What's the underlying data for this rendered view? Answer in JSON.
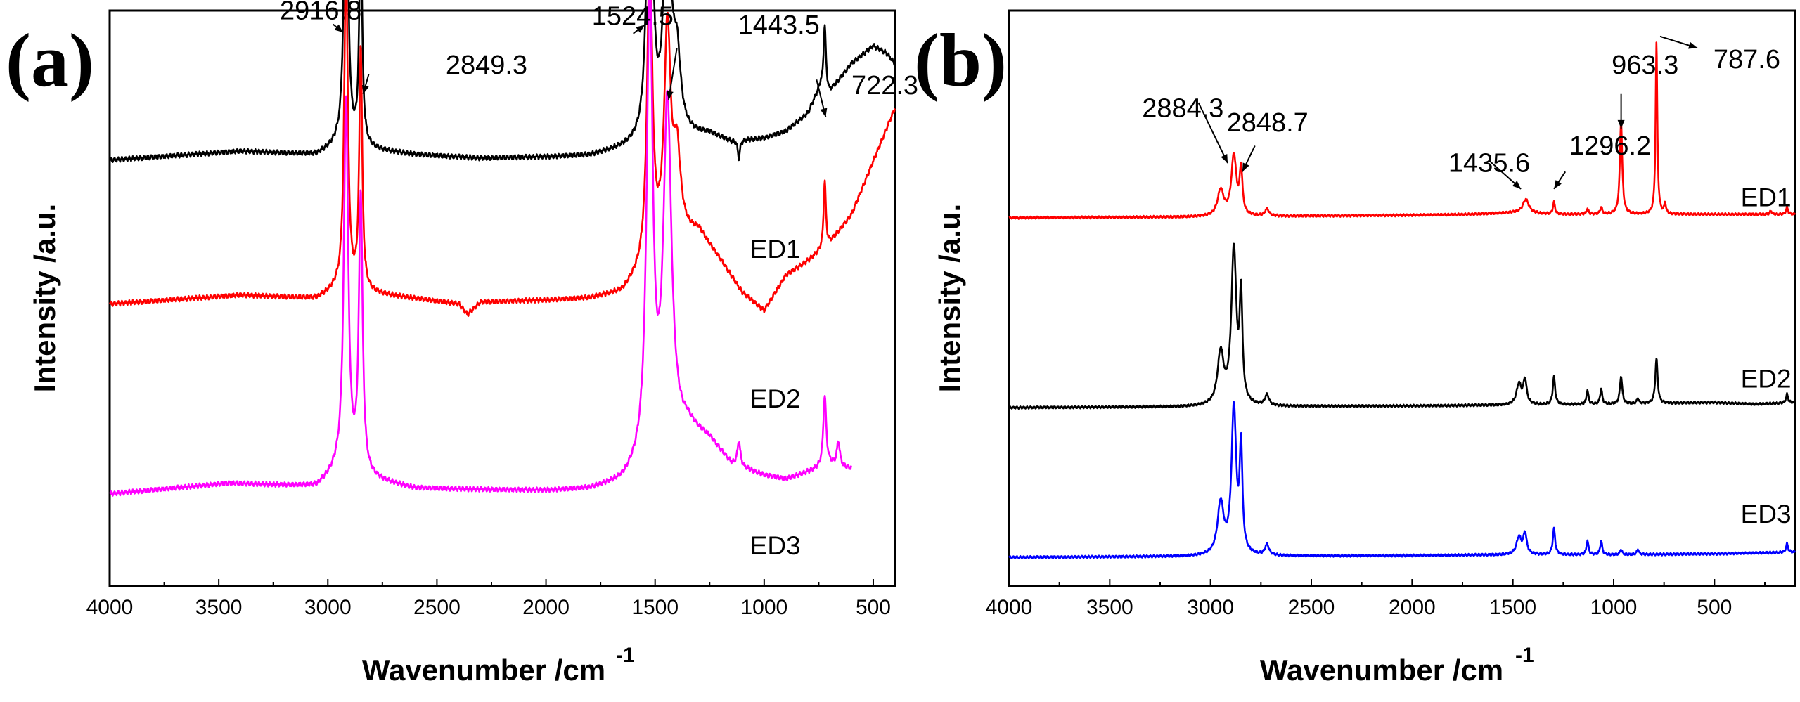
{
  "chart_data": [
    {
      "type": "line",
      "panel_label": "(a)",
      "xlabel": "Wavenumber /cm",
      "xlabel_superscript": "-1",
      "ylabel": "Intensity /a.u.",
      "xlim": [
        4000,
        400
      ],
      "x_ticks": [
        4000,
        3500,
        3000,
        2500,
        2000,
        1500,
        1000,
        500
      ],
      "y_ticks": [],
      "grid": false,
      "series": [
        {
          "name": "ED1",
          "color": "#000000",
          "offset": 0.74,
          "scale": 0.62,
          "xmin": 400,
          "baseline": [
            [
              4000,
              0
            ],
            [
              3400,
              0.025
            ],
            [
              3050,
              0.015
            ],
            [
              2960,
              0.04
            ],
            [
              2600,
              0.015
            ],
            [
              2300,
              0.005
            ],
            [
              2000,
              0.008
            ],
            [
              1800,
              0.012
            ],
            [
              1650,
              0.03
            ],
            [
              1400,
              0.06
            ],
            [
              1250,
              0.07
            ],
            [
              1150,
              0.05
            ],
            [
              1000,
              0.06
            ],
            [
              900,
              0.08
            ],
            [
              800,
              0.13
            ],
            [
              740,
              0.21
            ],
            [
              700,
              0.19
            ],
            [
              600,
              0.27
            ],
            [
              500,
              0.32
            ],
            [
              440,
              0.3
            ],
            [
              400,
              0.27
            ]
          ],
          "peaks": [
            [
              2916.8,
              1.0,
              10
            ],
            [
              2849.3,
              0.62,
              8
            ],
            [
              1524.5,
              1.04,
              14
            ],
            [
              1443.5,
              0.72,
              18
            ],
            [
              1400,
              0.2,
              20
            ],
            [
              1116,
              -0.05,
              6
            ],
            [
              722.3,
              0.18,
              6
            ]
          ]
        },
        {
          "name": "ED2",
          "color": "#ff0000",
          "offset": 0.49,
          "scale": 0.62,
          "xmin": 400,
          "baseline": [
            [
              4000,
              0
            ],
            [
              3400,
              0.025
            ],
            [
              3050,
              0.015
            ],
            [
              2960,
              0.04
            ],
            [
              2600,
              0.015
            ],
            [
              2400,
              0.0
            ],
            [
              2360,
              -0.03
            ],
            [
              2300,
              0.005
            ],
            [
              2000,
              0.01
            ],
            [
              1800,
              0.015
            ],
            [
              1650,
              0.03
            ],
            [
              1400,
              0.18
            ],
            [
              1300,
              0.2
            ],
            [
              1200,
              0.12
            ],
            [
              1100,
              0.03
            ],
            [
              1000,
              -0.02
            ],
            [
              900,
              0.08
            ],
            [
              800,
              0.12
            ],
            [
              700,
              0.17
            ],
            [
              600,
              0.25
            ],
            [
              500,
              0.4
            ],
            [
              400,
              0.55
            ]
          ],
          "peaks": [
            [
              2916.8,
              0.92,
              10
            ],
            [
              2849.3,
              0.68,
              8
            ],
            [
              1524.5,
              0.86,
              14
            ],
            [
              1443.5,
              0.6,
              18
            ],
            [
              1400,
              0.22,
              20
            ],
            [
              722.3,
              0.19,
              6
            ]
          ]
        },
        {
          "name": "ED3",
          "color": "#ff00ff",
          "offset": 0.16,
          "scale": 0.62,
          "xmin": 600,
          "baseline": [
            [
              4000,
              0
            ],
            [
              3450,
              0.03
            ],
            [
              3050,
              0.02
            ],
            [
              2960,
              0.06
            ],
            [
              2600,
              0.015
            ],
            [
              2000,
              0.008
            ],
            [
              1800,
              0.012
            ],
            [
              1650,
              0.03
            ],
            [
              1350,
              0.18
            ],
            [
              1250,
              0.15
            ],
            [
              1150,
              0.08
            ],
            [
              1000,
              0.05
            ],
            [
              900,
              0.04
            ],
            [
              800,
              0.06
            ],
            [
              700,
              0.08
            ],
            [
              600,
              0.07
            ]
          ],
          "peaks": [
            [
              2916.8,
              1.05,
              12
            ],
            [
              2849.3,
              0.78,
              10
            ],
            [
              1524.5,
              1.3,
              16
            ],
            [
              1443.5,
              0.95,
              22
            ],
            [
              1116,
              0.07,
              8
            ],
            [
              722.3,
              0.2,
              8
            ],
            [
              660,
              0.07,
              8
            ]
          ]
        }
      ],
      "series_labels": [
        {
          "text": "ED1",
          "x": 1065,
          "y": 0.57
        },
        {
          "text": "ED2",
          "x": 1065,
          "y": 0.31
        },
        {
          "text": "ED3",
          "x": 1065,
          "y": 0.055
        }
      ],
      "annotations": [
        {
          "text": "2916.8",
          "x": 3220,
          "y": 0.985,
          "ax": 2976,
          "ay": 0.976,
          "bx": 2930,
          "by": 0.962
        },
        {
          "text": "2849.3",
          "x": 2460,
          "y": 0.89,
          "ax": 2812,
          "ay": 0.89,
          "bx": 2838,
          "by": 0.855
        },
        {
          "text": "1524.5",
          "x": 1790,
          "y": 0.975,
          "ax": 1600,
          "ay": 0.96,
          "bx": 1548,
          "by": 0.975
        },
        {
          "text": "1443.5",
          "x": 1120,
          "y": 0.96,
          "ax": 1400,
          "ay": 0.935,
          "bx": 1438,
          "by": 0.845
        },
        {
          "text": "722.3",
          "x": 600,
          "y": 0.855,
          "ax": 760,
          "ay": 0.88,
          "bx": 718,
          "by": 0.815
        }
      ]
    },
    {
      "type": "line",
      "panel_label": "(b)",
      "xlabel": "Wavenumber /cm",
      "xlabel_superscript": "-1",
      "ylabel": "Intensity /a.u.",
      "xlim": [
        4000,
        100
      ],
      "x_ticks": [
        4000,
        3500,
        3000,
        2500,
        2000,
        1500,
        1000,
        500
      ],
      "y_ticks": [],
      "grid": false,
      "series": [
        {
          "name": "ED1",
          "color": "#ff0000",
          "offset": 0.64,
          "scale": 0.3,
          "xmin": 100,
          "baseline": [
            [
              4000,
              0
            ],
            [
              3000,
              0.005
            ],
            [
              2000,
              0.015
            ],
            [
              1700,
              0.02
            ],
            [
              1500,
              0.03
            ],
            [
              1300,
              0.02
            ],
            [
              1000,
              0.02
            ],
            [
              500,
              0.02
            ],
            [
              100,
              0.02
            ]
          ],
          "peaks": [
            [
              2884.3,
              0.35,
              15
            ],
            [
              2848.7,
              0.26,
              8
            ],
            [
              2950,
              0.15,
              18
            ],
            [
              2720,
              0.04,
              12
            ],
            [
              1435.6,
              0.08,
              18
            ],
            [
              1296.2,
              0.07,
              6
            ],
            [
              1130,
              0.03,
              6
            ],
            [
              1062,
              0.04,
              6
            ],
            [
              963.3,
              0.54,
              7
            ],
            [
              787.6,
              1.0,
              5
            ],
            [
              745,
              0.06,
              5
            ],
            [
              140,
              0.04,
              6
            ],
            [
              220,
              0.02,
              6
            ]
          ]
        },
        {
          "name": "ED2",
          "color": "#000000",
          "offset": 0.31,
          "scale": 0.3,
          "xmin": 100,
          "baseline": [
            [
              4000,
              0
            ],
            [
              3000,
              0.005
            ],
            [
              2000,
              0.01
            ],
            [
              1500,
              0.015
            ],
            [
              1000,
              0.02
            ],
            [
              500,
              0.03
            ],
            [
              300,
              0.02
            ],
            [
              100,
              0.03
            ]
          ],
          "peaks": [
            [
              2884.3,
              0.9,
              15
            ],
            [
              2848.7,
              0.6,
              8
            ],
            [
              2950,
              0.3,
              18
            ],
            [
              2720,
              0.06,
              12
            ],
            [
              1470,
              0.12,
              14
            ],
            [
              1440,
              0.14,
              10
            ],
            [
              1296.2,
              0.16,
              7
            ],
            [
              1130,
              0.08,
              6
            ],
            [
              1062,
              0.09,
              6
            ],
            [
              963.3,
              0.16,
              7
            ],
            [
              880,
              0.03,
              6
            ],
            [
              787.6,
              0.26,
              7
            ],
            [
              140,
              0.05,
              6
            ]
          ]
        },
        {
          "name": "ED3",
          "color": "#0000ff",
          "offset": 0.05,
          "scale": 0.3,
          "xmin": 100,
          "baseline": [
            [
              4000,
              0
            ],
            [
              3000,
              0.005
            ],
            [
              2000,
              0.01
            ],
            [
              1500,
              0.015
            ],
            [
              1000,
              0.015
            ],
            [
              500,
              0.02
            ],
            [
              100,
              0.03
            ]
          ],
          "peaks": [
            [
              2884.3,
              0.85,
              14
            ],
            [
              2848.7,
              0.6,
              8
            ],
            [
              2950,
              0.3,
              18
            ],
            [
              2720,
              0.06,
              12
            ],
            [
              1470,
              0.1,
              14
            ],
            [
              1440,
              0.12,
              10
            ],
            [
              1296.2,
              0.15,
              7
            ],
            [
              1130,
              0.08,
              6
            ],
            [
              1062,
              0.08,
              6
            ],
            [
              963.3,
              0.03,
              6
            ],
            [
              880,
              0.03,
              6
            ],
            [
              140,
              0.05,
              6
            ]
          ]
        }
      ],
      "series_labels": [
        {
          "text": "ED1",
          "x": 370,
          "y": 0.66
        },
        {
          "text": "ED2",
          "x": 370,
          "y": 0.345
        },
        {
          "text": "ED3",
          "x": 370,
          "y": 0.11
        }
      ],
      "annotations": [
        {
          "text": "2884.3",
          "x": 3340,
          "y": 0.815,
          "ax": 3060,
          "ay": 0.84,
          "bx": 2915,
          "by": 0.735
        },
        {
          "text": "2848.7",
          "x": 2920,
          "y": 0.79,
          "ax": 2780,
          "ay": 0.765,
          "bx": 2842,
          "by": 0.72
        },
        {
          "text": "1435.6",
          "x": 1820,
          "y": 0.72,
          "ax": 1620,
          "ay": 0.74,
          "bx": 1460,
          "by": 0.69
        },
        {
          "text": "1296.2",
          "x": 1220,
          "y": 0.75,
          "ax": 1240,
          "ay": 0.72,
          "bx": 1296,
          "by": 0.69
        },
        {
          "text": "963.3",
          "x": 1010,
          "y": 0.89,
          "ax": 963,
          "ay": 0.855,
          "bx": 963,
          "by": 0.795
        },
        {
          "text": "787.6",
          "x": 505,
          "y": 0.9,
          "ax": 770,
          "ay": 0.955,
          "bx": 585,
          "by": 0.935
        }
      ]
    }
  ]
}
